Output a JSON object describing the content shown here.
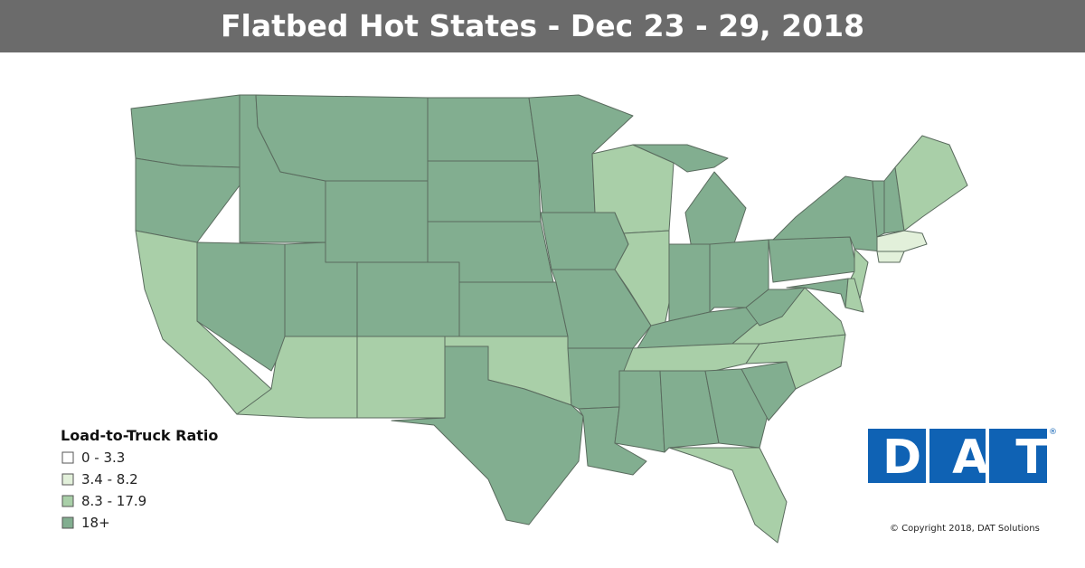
{
  "header": {
    "title": "Flatbed Hot States - Dec 23 - 29, 2018"
  },
  "legend": {
    "title": "Load-to-Truck Ratio",
    "items": [
      {
        "label": "0 - 3.3",
        "color": "#ffffff"
      },
      {
        "label": "3.4 - 8.2",
        "color": "#e2f0da"
      },
      {
        "label": "8.3 - 17.9",
        "color": "#a9cfa8"
      },
      {
        "label": "18+",
        "color": "#82ae90"
      }
    ]
  },
  "logo": {
    "text": "DAT",
    "mark": "®"
  },
  "copyright": "© Copyright 2018, DAT Solutions"
}
